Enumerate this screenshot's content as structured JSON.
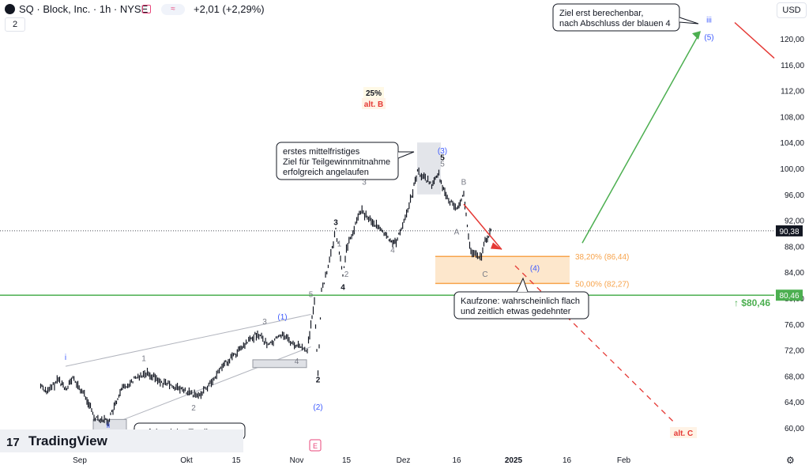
{
  "header": {
    "symbol": "SQ · Block, Inc. · 1h · NYSE",
    "change": "+2,01 (+2,29%)",
    "pill": "≈",
    "layers": "2",
    "currency": "USD"
  },
  "colors": {
    "candle": "#131722",
    "green": "#4caf50",
    "red": "#e53935",
    "orange": "#f7a34b",
    "zone_fill": "#fde7cc",
    "wave_blue": "#3d5afe",
    "gray_label": "#787b86"
  },
  "chart_data": {
    "type": "candlestick",
    "symbol": "SQ",
    "interval": "1h",
    "ylim": [
      57,
      124
    ],
    "y_ticks": [
      "60,00",
      "64,00",
      "68,00",
      "72,00",
      "76,00",
      "80,00",
      "84,00",
      "88,00",
      "92,00",
      "96,00",
      "100,00",
      "104,00",
      "108,00",
      "112,00",
      "116,00",
      "120,00"
    ],
    "x_ticks": [
      "Sep",
      "Okt",
      "15",
      "Nov",
      "15",
      "Dez",
      "16",
      "2025",
      "16",
      "Feb"
    ],
    "price_path": [
      [
        "Aug 21",
        66.5
      ],
      [
        "Aug 23",
        65.5
      ],
      [
        "Aug 26",
        67.5
      ],
      [
        "Aug 28",
        66.0
      ],
      [
        "Aug 30",
        67.6
      ],
      [
        "Sep 3",
        64.5
      ],
      [
        "Sep 5",
        61.7
      ],
      [
        "Sep 9",
        61.0
      ],
      [
        "Sep 11",
        63.5
      ],
      [
        "Sep 13",
        66.0
      ],
      [
        "Sep 17",
        67.8
      ],
      [
        "Sep 20",
        68.6
      ],
      [
        "Sep 24",
        67.0
      ],
      [
        "Sep 27",
        66.5
      ],
      [
        "Oct 1",
        65.5
      ],
      [
        "Oct 4",
        64.8
      ],
      [
        "Oct 8",
        67.0
      ],
      [
        "Oct 11",
        69.5
      ],
      [
        "Oct 16",
        72.0
      ],
      [
        "Oct 21",
        74.6
      ],
      [
        "Oct 24",
        72.7
      ],
      [
        "Oct 28",
        74.5
      ],
      [
        "Oct 31",
        72.9
      ],
      [
        "Nov 4",
        72.0
      ],
      [
        "Nov 6",
        79.5
      ],
      [
        "Nov 7",
        68.5
      ],
      [
        "Nov 8",
        81.0
      ],
      [
        "Nov 11",
        87.5
      ],
      [
        "Nov 12",
        90.5
      ],
      [
        "Nov 14",
        83.5
      ],
      [
        "Nov 15",
        87.5
      ],
      [
        "Nov 19",
        93.5
      ],
      [
        "Nov 22",
        92.0
      ],
      [
        "Nov 27",
        89.0
      ],
      [
        "Nov 29",
        88.5
      ],
      [
        "Dec 3",
        95.0
      ],
      [
        "Dec 5",
        99.5
      ],
      [
        "Dec 9",
        97.5
      ],
      [
        "Dec 11",
        99.0
      ],
      [
        "Dec 13",
        95.5
      ],
      [
        "Dec 16",
        94.0
      ],
      [
        "Dec 18",
        96.0
      ],
      [
        "Dec 19",
        91.0
      ],
      [
        "Dec 20",
        87.0
      ],
      [
        "Dec 23",
        86.3
      ],
      [
        "Dec 24",
        89.0
      ],
      [
        "Dec 26",
        90.38
      ]
    ],
    "last_price": "90,38",
    "horizontal_level": {
      "value": 80.46,
      "label": "80,46",
      "tag": "↑ $80,46"
    },
    "fib_levels": [
      {
        "label": "38,20% (86,44)",
        "value": 86.44
      },
      {
        "label": "50,00% (82,27)",
        "value": 82.27
      }
    ],
    "wave_labels": [
      {
        "text": "i",
        "x": "Aug 28",
        "y": 70.5,
        "color": "blue"
      },
      {
        "text": "ii",
        "x": "Sep 9",
        "y": 60.0,
        "color": "blue"
      },
      {
        "text": "1",
        "x": "Sep 19",
        "y": 70.3,
        "color": "gray"
      },
      {
        "text": "2",
        "x": "Oct 3",
        "y": 62.7,
        "color": "gray"
      },
      {
        "text": "3",
        "x": "Oct 23",
        "y": 76.0,
        "color": "gray"
      },
      {
        "text": "(1)",
        "x": "Oct 28",
        "y": 76.7,
        "color": "blue"
      },
      {
        "text": "4",
        "x": "Nov 1",
        "y": 69.9,
        "color": "gray"
      },
      {
        "text": "5",
        "x": "Nov 5",
        "y": 80.2,
        "color": "gray"
      },
      {
        "text": "2",
        "x": "Nov 7",
        "y": 67.0,
        "color": "black"
      },
      {
        "text": "(2)",
        "x": "Nov 7",
        "y": 62.8,
        "color": "blue"
      },
      {
        "text": "3",
        "x": "Nov 12",
        "y": 91.3,
        "color": "black"
      },
      {
        "text": "4",
        "x": "Nov 14",
        "y": 81.3,
        "color": "black"
      },
      {
        "text": "1",
        "x": "Nov 13",
        "y": 88.0,
        "color": "gray"
      },
      {
        "text": "2",
        "x": "Nov 15",
        "y": 83.3,
        "color": "gray"
      },
      {
        "text": "3",
        "x": "Nov 20",
        "y": 97.5,
        "color": "gray"
      },
      {
        "text": "4",
        "x": "Nov 28",
        "y": 87.0,
        "color": "gray"
      },
      {
        "text": "5",
        "x": "Dec 12",
        "y": 100.3,
        "color": "gray"
      },
      {
        "text": "5",
        "x": "Dec 12",
        "y": 101.3,
        "color": "black"
      },
      {
        "text": "(3)",
        "x": "Dec 12",
        "y": 102.3,
        "color": "blue"
      },
      {
        "text": "A",
        "x": "Dec 16",
        "y": 89.8,
        "color": "gray"
      },
      {
        "text": "B",
        "x": "Dec 18",
        "y": 97.5,
        "color": "gray"
      },
      {
        "text": "C",
        "x": "Dec 24",
        "y": 83.3,
        "color": "gray"
      },
      {
        "text": "(4)",
        "x": "Jan 7",
        "y": 84.2,
        "color": "blue"
      },
      {
        "text": "iii",
        "x": "Feb 25",
        "y": 122.5,
        "color": "blue"
      },
      {
        "text": "(5)",
        "x": "Feb 25",
        "y": 119.8,
        "color": "blue"
      }
    ],
    "annotations": [
      {
        "text": "25%",
        "style": "badge-dark"
      },
      {
        "text": "alt. B",
        "style": "badge-red"
      },
      {
        "text": "alt. C",
        "style": "badge-red"
      },
      {
        "text": "E",
        "style": "event"
      }
    ],
    "callouts": {
      "top_right": [
        "Ziel erst berechenbar,",
        "nach Abschluss der blauen 4"
      ],
      "mid": [
        "erstes mittelfristiges",
        "Ziel für Teilgewinnmitnahme",
        "erfolgreich angelaufen"
      ],
      "buy_zone": [
        "Kaufzone: wahrscheinlich flach",
        "und zeitlich etwas gedehnter"
      ],
      "trading_zone": [
        "erfolgreiche Tradingzone"
      ]
    }
  },
  "branding": {
    "logo_mark": "17",
    "logo_text": "TradingView"
  }
}
